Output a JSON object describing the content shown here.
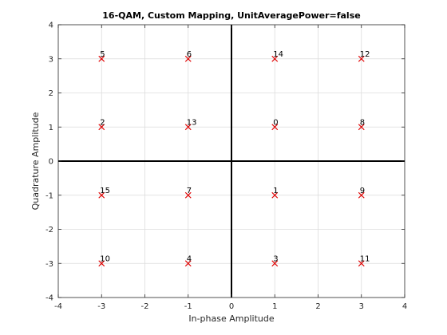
{
  "chart_data": {
    "type": "scatter",
    "title": "16-QAM, Custom Mapping, UnitAveragePower=false",
    "xlabel": "In-phase Amplitude",
    "ylabel": "Quadrature Amplitude",
    "xlim": [
      -4,
      4
    ],
    "ylim": [
      -4,
      4
    ],
    "xticks": [
      -4,
      -3,
      -2,
      -1,
      0,
      1,
      2,
      3,
      4
    ],
    "yticks": [
      -4,
      -3,
      -2,
      -1,
      0,
      1,
      2,
      3,
      4
    ],
    "grid": true,
    "marker": "x",
    "marker_color": "#e00000",
    "points": [
      {
        "x": -3,
        "y": 3,
        "label": "5"
      },
      {
        "x": -1,
        "y": 3,
        "label": "6"
      },
      {
        "x": 1,
        "y": 3,
        "label": "14"
      },
      {
        "x": 3,
        "y": 3,
        "label": "12"
      },
      {
        "x": -3,
        "y": 1,
        "label": "2"
      },
      {
        "x": -1,
        "y": 1,
        "label": "13"
      },
      {
        "x": 1,
        "y": 1,
        "label": "0"
      },
      {
        "x": 3,
        "y": 1,
        "label": "8"
      },
      {
        "x": -3,
        "y": -1,
        "label": "15"
      },
      {
        "x": -1,
        "y": -1,
        "label": "7"
      },
      {
        "x": 1,
        "y": -1,
        "label": "1"
      },
      {
        "x": 3,
        "y": -1,
        "label": "9"
      },
      {
        "x": -3,
        "y": -3,
        "label": "10"
      },
      {
        "x": -1,
        "y": -3,
        "label": "4"
      },
      {
        "x": 1,
        "y": -3,
        "label": "3"
      },
      {
        "x": 3,
        "y": -3,
        "label": "11"
      }
    ]
  }
}
